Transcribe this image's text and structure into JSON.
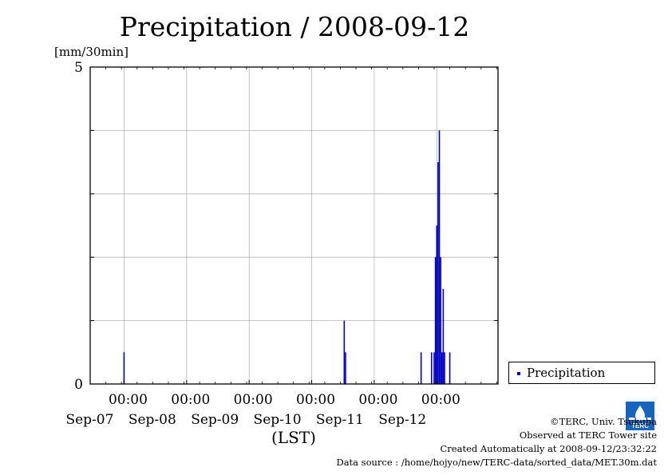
{
  "chart_data": {
    "type": "bar",
    "title": "Precipitation / 2008-09-12",
    "ylabel": "[mm/30min]",
    "xlabel": "(LST)",
    "ylim": [
      0,
      5
    ],
    "y_tick_labels": [
      "0",
      "5"
    ],
    "xlim": [
      "2008-09-06T11:00",
      "2008-09-12T23:30"
    ],
    "x_ticks": [
      {
        "time": "2008-09-07T00:00",
        "top": "00:00",
        "date": "Sep-07"
      },
      {
        "time": "2008-09-08T00:00",
        "top": "00:00",
        "date": "Sep-08"
      },
      {
        "time": "2008-09-09T00:00",
        "top": "00:00",
        "date": "Sep-09"
      },
      {
        "time": "2008-09-10T00:00",
        "top": "00:00",
        "date": "Sep-10"
      },
      {
        "time": "2008-09-11T00:00",
        "top": "00:00",
        "date": "Sep-11"
      },
      {
        "time": "2008-09-12T00:00",
        "top": "00:00",
        "date": "Sep-12"
      }
    ],
    "grid": true,
    "legend_position": "right",
    "series": [
      {
        "name": "Precipitation",
        "color": "#0000c8",
        "points": [
          {
            "t": "2008-09-07T00:00",
            "v": 0.5
          },
          {
            "t": "2008-09-10T12:30",
            "v": 1.0
          },
          {
            "t": "2008-09-10T13:00",
            "v": 0.5
          },
          {
            "t": "2008-09-11T18:00",
            "v": 0.5
          },
          {
            "t": "2008-09-11T22:00",
            "v": 0.5
          },
          {
            "t": "2008-09-11T23:00",
            "v": 0.5
          },
          {
            "t": "2008-09-11T23:30",
            "v": 2.0
          },
          {
            "t": "2008-09-12T00:00",
            "v": 2.5
          },
          {
            "t": "2008-09-12T00:30",
            "v": 3.5
          },
          {
            "t": "2008-09-12T01:00",
            "v": 4.0
          },
          {
            "t": "2008-09-12T01:30",
            "v": 2.0
          },
          {
            "t": "2008-09-12T02:00",
            "v": 0.5
          },
          {
            "t": "2008-09-12T02:30",
            "v": 1.5
          },
          {
            "t": "2008-09-12T03:00",
            "v": 0.5
          },
          {
            "t": "2008-09-12T05:00",
            "v": 0.5
          }
        ]
      }
    ]
  },
  "legend": {
    "label": "Precipitation"
  },
  "footer": {
    "copyright": "©TERC, Univ. Tsukuba",
    "observed": "Observed at TERC Tower site",
    "created": "Created Automatically at 2008-09-12/23:32:22",
    "source": "Data source : /home/hojyo/new/TERC-data/sorted_data/MET.30m.dat",
    "logo_text": "TERC"
  }
}
